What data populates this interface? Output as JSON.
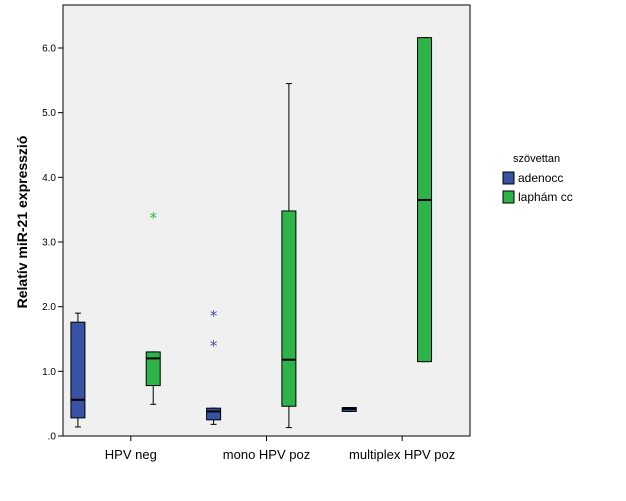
{
  "chart_data": {
    "type": "boxplot",
    "title": "",
    "xlabel": "",
    "ylabel": "Relatív miR-21 expresszió",
    "ylim": [
      0,
      6.6
    ],
    "yticks": [
      0,
      1,
      2,
      3,
      4,
      5,
      6
    ],
    "ytick_labels": [
      ".0",
      "1.0",
      "2.0",
      "3.0",
      "4.0",
      "5.0",
      "6.0"
    ],
    "categories": [
      "HPV neg",
      "mono HPV poz",
      "multiplex HPV poz"
    ],
    "legend": {
      "title": "szövettan",
      "position": "right",
      "entries": [
        {
          "name": "adenocc",
          "color": "#3953a4"
        },
        {
          "name": "laphám cc",
          "color": "#2eb24a"
        }
      ]
    },
    "series": [
      {
        "name": "adenocc",
        "color": "#3953a4",
        "boxes": [
          {
            "category": "HPV neg",
            "min": 0.14,
            "q1": 0.28,
            "median": 0.56,
            "q3": 1.76,
            "max": 1.9,
            "outliers": []
          },
          {
            "category": "mono HPV poz",
            "min": 0.18,
            "q1": 0.25,
            "median": 0.38,
            "q3": 0.43,
            "max": 0.43,
            "outliers": [
              1.87,
              1.41
            ]
          },
          {
            "category": "multiplex HPV poz",
            "min": 0.38,
            "q1": 0.38,
            "median": 0.42,
            "q3": 0.44,
            "max": 0.44,
            "outliers": []
          }
        ]
      },
      {
        "name": "laphám cc",
        "color": "#2eb24a",
        "boxes": [
          {
            "category": "HPV neg",
            "min": 0.49,
            "q1": 0.78,
            "median": 1.2,
            "q3": 1.3,
            "max": 1.3,
            "outliers": [
              3.39
            ]
          },
          {
            "category": "mono HPV poz",
            "min": 0.13,
            "q1": 0.46,
            "median": 1.18,
            "q3": 3.48,
            "max": 5.45,
            "outliers": []
          },
          {
            "category": "multiplex HPV poz",
            "min": 1.15,
            "q1": 1.15,
            "median": 3.65,
            "q3": 6.16,
            "max": 6.16,
            "outliers": []
          }
        ]
      }
    ],
    "outlier_marker": "*",
    "plot_background": "#f0f0f0"
  }
}
